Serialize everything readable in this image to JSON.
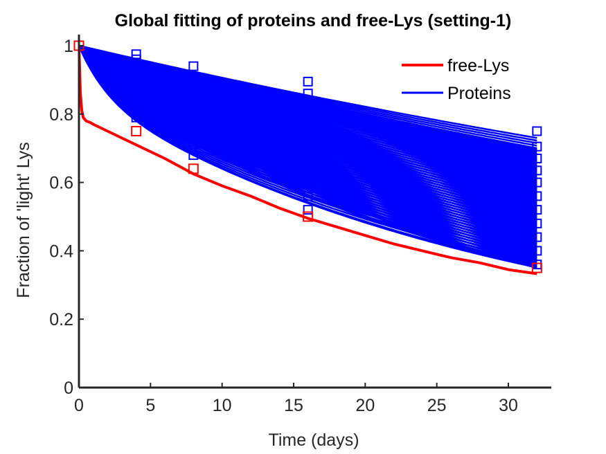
{
  "chart_data": {
    "type": "line",
    "title": "Global fitting of proteins and free-Lys (setting-1)",
    "xlabel": "Time (days)",
    "ylabel": "Fraction of  'light'  Lys",
    "xlim": [
      0,
      33
    ],
    "ylim": [
      0,
      1.0
    ],
    "xticks": [
      "0",
      "5",
      "10",
      "15",
      "20",
      "25",
      "30"
    ],
    "yticks": [
      "0",
      "0.2",
      "0.4",
      "0.6",
      "0.8",
      "1"
    ],
    "grid": false,
    "legend_position": "top-right",
    "colors": {
      "free_lys": "#ff0000",
      "proteins": "#0000ff",
      "axis": "#262626"
    },
    "legend": [
      {
        "label": "free-Lys",
        "color": "#ff0000"
      },
      {
        "label": "Proteins",
        "color": "#0000ff"
      }
    ],
    "series": [
      {
        "name": "free-Lys",
        "color": "#ff0000",
        "fit_x": [
          0,
          0.1,
          0.2,
          0.3,
          0.5,
          0.8,
          1,
          2,
          4,
          6,
          8,
          10,
          12,
          14,
          16,
          18,
          20,
          22,
          24,
          26,
          28,
          30,
          32
        ],
        "fit_y": [
          1.0,
          0.86,
          0.81,
          0.79,
          0.78,
          0.775,
          0.77,
          0.75,
          0.71,
          0.67,
          0.625,
          0.59,
          0.56,
          0.525,
          0.495,
          0.47,
          0.445,
          0.42,
          0.4,
          0.38,
          0.365,
          0.345,
          0.333
        ],
        "points_x": [
          0,
          4,
          8,
          16,
          32
        ],
        "points_y": [
          1.0,
          0.75,
          0.64,
          0.5,
          0.35
        ]
      }
    ],
    "protein_curves": {
      "name": "Proteins",
      "color": "#0000ff",
      "x_points": [
        0,
        4,
        8,
        16,
        32
      ],
      "endpoint_values_at_32": [
        0.73,
        0.7,
        0.69,
        0.675,
        0.665,
        0.655,
        0.645,
        0.635,
        0.625,
        0.615,
        0.605,
        0.595,
        0.585,
        0.575,
        0.565,
        0.555,
        0.545,
        0.535,
        0.525,
        0.515,
        0.505,
        0.495,
        0.485,
        0.475,
        0.465,
        0.455,
        0.445,
        0.435,
        0.425,
        0.415,
        0.405,
        0.395,
        0.385,
        0.375,
        0.365,
        0.355,
        0.35
      ],
      "data_points": [
        {
          "x": 4,
          "y": 0.975
        },
        {
          "x": 4,
          "y": 0.96
        },
        {
          "x": 4,
          "y": 0.93
        },
        {
          "x": 4,
          "y": 0.89
        },
        {
          "x": 4,
          "y": 0.85
        },
        {
          "x": 4,
          "y": 0.82
        },
        {
          "x": 4,
          "y": 0.79
        },
        {
          "x": 8,
          "y": 0.94
        },
        {
          "x": 8,
          "y": 0.91
        },
        {
          "x": 8,
          "y": 0.87
        },
        {
          "x": 8,
          "y": 0.83
        },
        {
          "x": 8,
          "y": 0.78
        },
        {
          "x": 8,
          "y": 0.74
        },
        {
          "x": 8,
          "y": 0.71
        },
        {
          "x": 8,
          "y": 0.68
        },
        {
          "x": 16,
          "y": 0.895
        },
        {
          "x": 16,
          "y": 0.86
        },
        {
          "x": 16,
          "y": 0.84
        },
        {
          "x": 16,
          "y": 0.79
        },
        {
          "x": 16,
          "y": 0.73
        },
        {
          "x": 16,
          "y": 0.67
        },
        {
          "x": 16,
          "y": 0.61
        },
        {
          "x": 16,
          "y": 0.56
        },
        {
          "x": 16,
          "y": 0.52
        },
        {
          "x": 32,
          "y": 0.75
        },
        {
          "x": 32,
          "y": 0.705
        },
        {
          "x": 32,
          "y": 0.67
        },
        {
          "x": 32,
          "y": 0.635
        },
        {
          "x": 32,
          "y": 0.6
        },
        {
          "x": 32,
          "y": 0.56
        },
        {
          "x": 32,
          "y": 0.52
        },
        {
          "x": 32,
          "y": 0.48
        },
        {
          "x": 32,
          "y": 0.44
        },
        {
          "x": 32,
          "y": 0.4
        },
        {
          "x": 32,
          "y": 0.36
        }
      ]
    }
  }
}
